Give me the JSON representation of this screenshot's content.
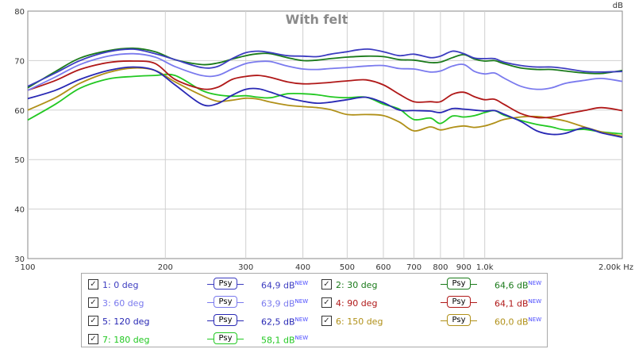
{
  "chart_data": {
    "type": "line",
    "title": "With felt",
    "ylabel": "dB",
    "xunit": "Hz",
    "xscale": "log",
    "xlim": [
      100,
      2000
    ],
    "ylim": [
      30,
      80
    ],
    "yticks": [
      30,
      40,
      50,
      60,
      70,
      80
    ],
    "xticks": [
      {
        "v": 100,
        "label": "100"
      },
      {
        "v": 200,
        "label": "200"
      },
      {
        "v": 300,
        "label": "300"
      },
      {
        "v": 400,
        "label": "400"
      },
      {
        "v": 500,
        "label": "500"
      },
      {
        "v": 600,
        "label": "600"
      },
      {
        "v": 700,
        "label": "700"
      },
      {
        "v": 800,
        "label": "800"
      },
      {
        "v": 900,
        "label": "900"
      },
      {
        "v": 1000,
        "label": "1,0k"
      },
      {
        "v": 2000,
        "label": "2,00k Hz"
      }
    ],
    "grid": true,
    "legend_placement": "bottom",
    "series": [
      {
        "name": "1: 0 deg",
        "color": "#3c3cc0",
        "level": "64,9 dB",
        "points": [
          [
            100,
            64.8
          ],
          [
            115,
            67.5
          ],
          [
            130,
            70.0
          ],
          [
            150,
            71.8
          ],
          [
            170,
            72.3
          ],
          [
            190,
            71.4
          ],
          [
            210,
            70.2
          ],
          [
            240,
            68.6
          ],
          [
            260,
            68.8
          ],
          [
            280,
            70.4
          ],
          [
            300,
            71.6
          ],
          [
            320,
            71.9
          ],
          [
            340,
            71.6
          ],
          [
            370,
            71.0
          ],
          [
            400,
            70.9
          ],
          [
            430,
            70.8
          ],
          [
            460,
            71.3
          ],
          [
            500,
            71.8
          ],
          [
            530,
            72.2
          ],
          [
            560,
            72.3
          ],
          [
            600,
            71.8
          ],
          [
            650,
            71.0
          ],
          [
            700,
            71.3
          ],
          [
            760,
            70.6
          ],
          [
            800,
            70.9
          ],
          [
            850,
            71.9
          ],
          [
            900,
            71.4
          ],
          [
            950,
            70.5
          ],
          [
            1000,
            70.4
          ],
          [
            1050,
            70.4
          ],
          [
            1100,
            69.7
          ],
          [
            1200,
            69.0
          ],
          [
            1300,
            68.7
          ],
          [
            1400,
            68.7
          ],
          [
            1500,
            68.4
          ],
          [
            1650,
            67.8
          ],
          [
            1800,
            67.7
          ],
          [
            2000,
            67.8
          ]
        ]
      },
      {
        "name": "2: 30 deg",
        "color": "#1a7a1a",
        "level": "64,6 dB",
        "points": [
          [
            100,
            64.5
          ],
          [
            115,
            67.8
          ],
          [
            130,
            70.5
          ],
          [
            150,
            72.0
          ],
          [
            170,
            72.5
          ],
          [
            190,
            71.8
          ],
          [
            210,
            70.2
          ],
          [
            240,
            69.2
          ],
          [
            260,
            69.5
          ],
          [
            280,
            70.3
          ],
          [
            300,
            71.0
          ],
          [
            320,
            71.4
          ],
          [
            340,
            71.4
          ],
          [
            370,
            70.6
          ],
          [
            400,
            70.0
          ],
          [
            430,
            70.1
          ],
          [
            460,
            70.4
          ],
          [
            500,
            70.7
          ],
          [
            550,
            70.9
          ],
          [
            600,
            70.8
          ],
          [
            650,
            70.2
          ],
          [
            700,
            70.1
          ],
          [
            760,
            69.6
          ],
          [
            800,
            69.7
          ],
          [
            850,
            70.6
          ],
          [
            900,
            71.2
          ],
          [
            950,
            70.3
          ],
          [
            1000,
            69.9
          ],
          [
            1050,
            70.0
          ],
          [
            1100,
            69.4
          ],
          [
            1200,
            68.5
          ],
          [
            1300,
            68.2
          ],
          [
            1400,
            68.2
          ],
          [
            1500,
            67.9
          ],
          [
            1650,
            67.5
          ],
          [
            1800,
            67.4
          ],
          [
            2000,
            68.0
          ]
        ]
      },
      {
        "name": "3: 60 deg",
        "color": "#7a7aee",
        "level": "63,9 dB",
        "points": [
          [
            100,
            64.0
          ],
          [
            115,
            66.7
          ],
          [
            130,
            69.2
          ],
          [
            150,
            70.9
          ],
          [
            170,
            71.4
          ],
          [
            190,
            70.7
          ],
          [
            210,
            68.8
          ],
          [
            240,
            67.0
          ],
          [
            260,
            67.0
          ],
          [
            280,
            68.3
          ],
          [
            300,
            69.4
          ],
          [
            320,
            69.8
          ],
          [
            340,
            69.8
          ],
          [
            370,
            68.9
          ],
          [
            400,
            68.3
          ],
          [
            430,
            68.2
          ],
          [
            460,
            68.4
          ],
          [
            500,
            68.6
          ],
          [
            550,
            68.9
          ],
          [
            600,
            69.0
          ],
          [
            650,
            68.4
          ],
          [
            700,
            68.3
          ],
          [
            760,
            67.7
          ],
          [
            800,
            67.9
          ],
          [
            850,
            68.9
          ],
          [
            900,
            69.2
          ],
          [
            950,
            67.8
          ],
          [
            1000,
            67.3
          ],
          [
            1050,
            67.5
          ],
          [
            1100,
            66.5
          ],
          [
            1200,
            64.8
          ],
          [
            1300,
            64.2
          ],
          [
            1400,
            64.5
          ],
          [
            1500,
            65.4
          ],
          [
            1650,
            66.0
          ],
          [
            1800,
            66.4
          ],
          [
            2000,
            65.8
          ]
        ]
      },
      {
        "name": "4: 90 deg",
        "color": "#b01818",
        "level": "64,1 dB",
        "points": [
          [
            100,
            64.0
          ],
          [
            115,
            66.0
          ],
          [
            130,
            68.2
          ],
          [
            150,
            69.6
          ],
          [
            170,
            69.9
          ],
          [
            190,
            69.4
          ],
          [
            210,
            66.2
          ],
          [
            240,
            64.3
          ],
          [
            260,
            64.6
          ],
          [
            280,
            66.2
          ],
          [
            300,
            66.8
          ],
          [
            320,
            67.0
          ],
          [
            340,
            66.6
          ],
          [
            370,
            65.7
          ],
          [
            400,
            65.3
          ],
          [
            430,
            65.4
          ],
          [
            460,
            65.6
          ],
          [
            500,
            65.9
          ],
          [
            550,
            66.1
          ],
          [
            600,
            65.1
          ],
          [
            650,
            63.2
          ],
          [
            700,
            61.7
          ],
          [
            760,
            61.7
          ],
          [
            800,
            61.7
          ],
          [
            850,
            63.2
          ],
          [
            900,
            63.6
          ],
          [
            950,
            62.7
          ],
          [
            1000,
            62.1
          ],
          [
            1050,
            62.2
          ],
          [
            1100,
            61.2
          ],
          [
            1200,
            59.3
          ],
          [
            1300,
            58.5
          ],
          [
            1400,
            58.6
          ],
          [
            1500,
            59.2
          ],
          [
            1650,
            59.9
          ],
          [
            1800,
            60.5
          ],
          [
            2000,
            59.9
          ]
        ]
      },
      {
        "name": "5: 120 deg",
        "color": "#2828b4",
        "level": "62,5 dB",
        "points": [
          [
            100,
            62.3
          ],
          [
            115,
            64.0
          ],
          [
            130,
            66.2
          ],
          [
            150,
            68.0
          ],
          [
            170,
            68.7
          ],
          [
            190,
            68.0
          ],
          [
            210,
            65.1
          ],
          [
            240,
            61.2
          ],
          [
            260,
            61.3
          ],
          [
            280,
            63.0
          ],
          [
            300,
            64.2
          ],
          [
            320,
            64.3
          ],
          [
            340,
            63.6
          ],
          [
            370,
            62.5
          ],
          [
            400,
            61.8
          ],
          [
            430,
            61.4
          ],
          [
            460,
            61.6
          ],
          [
            500,
            62.1
          ],
          [
            550,
            62.6
          ],
          [
            600,
            61.5
          ],
          [
            650,
            60.0
          ],
          [
            700,
            59.9
          ],
          [
            760,
            59.8
          ],
          [
            800,
            59.5
          ],
          [
            850,
            60.3
          ],
          [
            900,
            60.2
          ],
          [
            950,
            60.0
          ],
          [
            1000,
            59.8
          ],
          [
            1050,
            59.9
          ],
          [
            1100,
            59.2
          ],
          [
            1200,
            57.7
          ],
          [
            1300,
            55.8
          ],
          [
            1400,
            55.1
          ],
          [
            1500,
            55.3
          ],
          [
            1650,
            56.4
          ],
          [
            1800,
            55.4
          ],
          [
            2000,
            54.5
          ]
        ]
      },
      {
        "name": "6: 150 deg",
        "color": "#b09018",
        "level": "60,0 dB",
        "points": [
          [
            100,
            60.0
          ],
          [
            115,
            62.5
          ],
          [
            130,
            65.4
          ],
          [
            150,
            67.6
          ],
          [
            170,
            68.5
          ],
          [
            190,
            68.0
          ],
          [
            210,
            65.7
          ],
          [
            240,
            63.0
          ],
          [
            260,
            61.8
          ],
          [
            280,
            62.0
          ],
          [
            300,
            62.4
          ],
          [
            320,
            62.2
          ],
          [
            340,
            61.6
          ],
          [
            370,
            61.0
          ],
          [
            400,
            60.7
          ],
          [
            430,
            60.5
          ],
          [
            460,
            60.1
          ],
          [
            500,
            59.1
          ],
          [
            550,
            59.1
          ],
          [
            600,
            58.9
          ],
          [
            650,
            57.6
          ],
          [
            700,
            55.8
          ],
          [
            760,
            56.6
          ],
          [
            800,
            56.0
          ],
          [
            850,
            56.5
          ],
          [
            900,
            56.8
          ],
          [
            950,
            56.5
          ],
          [
            1000,
            56.8
          ],
          [
            1050,
            57.4
          ],
          [
            1100,
            58.1
          ],
          [
            1200,
            58.6
          ],
          [
            1300,
            58.7
          ],
          [
            1400,
            58.3
          ],
          [
            1500,
            57.8
          ],
          [
            1650,
            56.6
          ],
          [
            1800,
            55.6
          ],
          [
            2000,
            54.7
          ]
        ]
      },
      {
        "name": "7: 180 deg",
        "color": "#22c822",
        "level": "58,1 dB",
        "points": [
          [
            100,
            58.0
          ],
          [
            115,
            61.2
          ],
          [
            130,
            64.4
          ],
          [
            150,
            66.3
          ],
          [
            170,
            66.8
          ],
          [
            190,
            67.0
          ],
          [
            210,
            67.0
          ],
          [
            240,
            64.0
          ],
          [
            260,
            63.1
          ],
          [
            280,
            62.8
          ],
          [
            300,
            62.9
          ],
          [
            320,
            62.6
          ],
          [
            340,
            62.5
          ],
          [
            370,
            63.3
          ],
          [
            400,
            63.3
          ],
          [
            430,
            63.1
          ],
          [
            460,
            62.7
          ],
          [
            500,
            62.5
          ],
          [
            550,
            62.6
          ],
          [
            600,
            61.2
          ],
          [
            650,
            60.2
          ],
          [
            700,
            58.1
          ],
          [
            760,
            58.4
          ],
          [
            800,
            57.3
          ],
          [
            850,
            58.8
          ],
          [
            900,
            58.6
          ],
          [
            950,
            58.9
          ],
          [
            1000,
            59.5
          ],
          [
            1050,
            59.9
          ],
          [
            1100,
            59.0
          ],
          [
            1200,
            57.9
          ],
          [
            1300,
            57.1
          ],
          [
            1400,
            56.6
          ],
          [
            1500,
            56.0
          ],
          [
            1650,
            56.1
          ],
          [
            1800,
            55.6
          ],
          [
            2000,
            55.2
          ]
        ]
      }
    ]
  },
  "legend": {
    "psy_label": "Psy",
    "new_label": "NEW",
    "check_glyph": "✓"
  }
}
